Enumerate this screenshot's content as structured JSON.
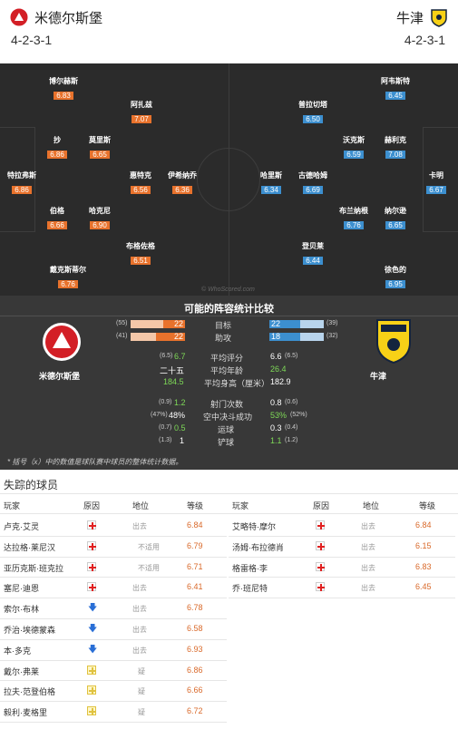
{
  "header": {
    "home_name": "米德尔斯堡",
    "home_formation": "4-2-3-1",
    "away_name": "牛津",
    "away_formation": "4-2-3-1"
  },
  "pitch": {
    "watermark": "© WhoScored.com",
    "home_players": [
      {
        "name": "博尔赫斯",
        "rating": "6.83"
      },
      {
        "name": "阿扎兹",
        "rating": "7.07"
      },
      {
        "name": "抄",
        "rating": "6.86"
      },
      {
        "name": "莫里斯",
        "rating": "6.65"
      },
      {
        "name": "惠特克",
        "rating": "6.56"
      },
      {
        "name": "伊希纳乔",
        "rating": "6.36"
      },
      {
        "name": "特拉弗斯",
        "rating": "6.86"
      },
      {
        "name": "伯格",
        "rating": "6.66"
      },
      {
        "name": "哈克尼",
        "rating": "6.90"
      },
      {
        "name": "布格佐格",
        "rating": "6.51"
      },
      {
        "name": "戴克斯蒂尔",
        "rating": "6.76"
      }
    ],
    "away_players": [
      {
        "name": "阿韦斯特",
        "rating": "6.45"
      },
      {
        "name": "普拉切塔",
        "rating": "6.50"
      },
      {
        "name": "沃克斯",
        "rating": "6.59"
      },
      {
        "name": "赫利克",
        "rating": "7.08"
      },
      {
        "name": "哈里斯",
        "rating": "6.34"
      },
      {
        "name": "古德哈姆",
        "rating": "6.69"
      },
      {
        "name": "卡明",
        "rating": "6.67"
      },
      {
        "name": "布兰纳根",
        "rating": "6.76"
      },
      {
        "name": "纳尔逊",
        "rating": "6.65"
      },
      {
        "name": "登贝莱",
        "rating": "6.44"
      },
      {
        "name": "徐色的",
        "rating": "6.95"
      }
    ]
  },
  "comparison": {
    "title": "可能的阵容统计比较",
    "home_label": "米德尔斯堡",
    "away_label": "牛津",
    "goals": {
      "label": "目标",
      "home": "22",
      "home_total": "(55)",
      "away": "22",
      "away_total": "(39)",
      "home_frac": 0.4,
      "away_frac": 0.56
    },
    "assists": {
      "label": "助攻",
      "home": "22",
      "home_total": "(41)",
      "away": "18",
      "away_total": "(32)",
      "home_frac": 0.54,
      "away_frac": 0.56
    },
    "rating": {
      "label": "平均评分",
      "home": "6.7",
      "home_total": "(6.5)",
      "away": "6.6",
      "away_total": "(6.5)"
    },
    "age": {
      "label": "平均年龄",
      "home": "二十五",
      "away": "26.4"
    },
    "height": {
      "label": "平均身高（厘米）",
      "home": "184.5",
      "away": "182.9"
    },
    "shots": {
      "label": "射门次数",
      "home": "1.2",
      "home_total": "(0.9)",
      "away": "0.8",
      "away_total": "(0.6)"
    },
    "aerial": {
      "label": "空中决斗成功",
      "home": "48%",
      "home_total": "(47%)",
      "away": "53%",
      "away_total": "(52%)"
    },
    "dribbles": {
      "label": "运球",
      "home": "0.5",
      "home_total": "(0.7)",
      "away": "0.3",
      "away_total": "(0.4)"
    },
    "tackles": {
      "label": "铲球",
      "home": "1",
      "home_total": "(1.3)",
      "away": "1.1",
      "away_total": "(1.2)"
    },
    "footnote": "* 括号（x）中的数值是球队赛中球员的整体统计数据。"
  },
  "missing": {
    "title": "失踪的球员",
    "headers": {
      "player": "玩家",
      "reason": "原因",
      "status": "地位",
      "rating": "等级"
    },
    "home": [
      {
        "name": "卢克·艾灵",
        "icon": "injury",
        "status": "出去",
        "rating": "6.84"
      },
      {
        "name": "达拉格·莱尼汉",
        "icon": "injury",
        "status": "不适用",
        "rating": "6.79"
      },
      {
        "name": "亚历克斯·班克拉",
        "icon": "injury",
        "status": "不适用",
        "rating": "6.71"
      },
      {
        "name": "塞尼·迪恩",
        "icon": "injury",
        "status": "出去",
        "rating": "6.41"
      },
      {
        "name": "索尔·布林",
        "icon": "arrow",
        "status": "出去",
        "rating": "6.78"
      },
      {
        "name": "乔治·埃德蒙森",
        "icon": "arrow",
        "status": "出去",
        "rating": "6.58"
      },
      {
        "name": "本·多克",
        "icon": "arrow",
        "status": "出去",
        "rating": "6.93"
      },
      {
        "name": "戴尔·弗莱",
        "icon": "doubt",
        "status": "疑",
        "rating": "6.86"
      },
      {
        "name": "拉夫·范登伯格",
        "icon": "doubt",
        "status": "疑",
        "rating": "6.66"
      },
      {
        "name": "毅利·麦格里",
        "icon": "doubt",
        "status": "疑",
        "rating": "6.72"
      }
    ],
    "away": [
      {
        "name": "艾略特·摩尔",
        "icon": "injury",
        "status": "出去",
        "rating": "6.84"
      },
      {
        "name": "汤姆·布拉德肖",
        "icon": "injury",
        "status": "出去",
        "rating": "6.15"
      },
      {
        "name": "格雷格·李",
        "icon": "injury",
        "status": "出去",
        "rating": "6.83"
      },
      {
        "name": "乔·班尼特",
        "icon": "injury",
        "status": "出去",
        "rating": "6.45"
      }
    ]
  }
}
